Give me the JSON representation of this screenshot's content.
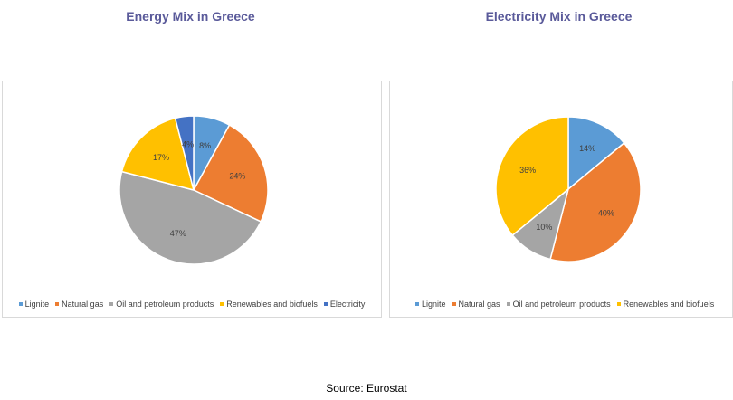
{
  "chart_data": [
    {
      "type": "pie",
      "title": "Energy Mix in Greece",
      "categories": [
        "Lignite",
        "Natural gas",
        "Oil and petroleum products",
        "Renewables and biofuels",
        "Electricity"
      ],
      "values": [
        8,
        24,
        47,
        17,
        4
      ],
      "labels": [
        "8%",
        "24%",
        "47%",
        "17%",
        "4%"
      ],
      "colors": [
        "#5b9bd5",
        "#ed7d31",
        "#a5a5a5",
        "#ffc000",
        "#4472c4"
      ],
      "legend": "bottom"
    },
    {
      "type": "pie",
      "title": "Electricity Mix in Greece",
      "categories": [
        "Lignite",
        "Natural gas",
        "Oil and petroleum products",
        "Renewables and biofuels"
      ],
      "values": [
        14,
        40,
        10,
        36
      ],
      "labels": [
        "14%",
        "40%",
        "10%",
        "36%"
      ],
      "colors": [
        "#5b9bd5",
        "#ed7d31",
        "#a5a5a5",
        "#ffc000"
      ],
      "legend": "bottom"
    }
  ],
  "source": "Source: Eurostat"
}
